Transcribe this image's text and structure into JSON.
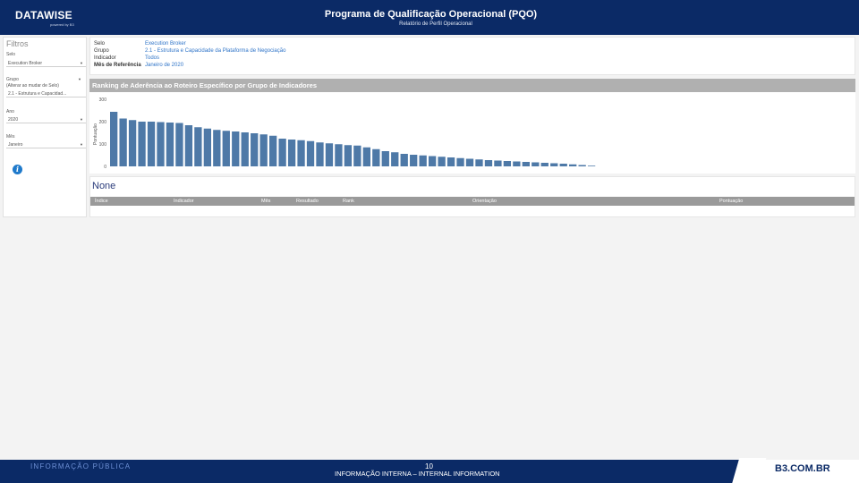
{
  "header": {
    "logo": "DATAWISE",
    "logo_sub": "powered by B3",
    "title": "Programa de Qualificação Operacional (PQO)",
    "subtitle": "Relatório de Perfil Operacional"
  },
  "filters": {
    "title": "Filtros",
    "selo_label": "Selo",
    "selo_value": "Execution Broker",
    "grupo_label_1": "Grupo",
    "grupo_label_2": "(Alterar ao mudar de Selo)",
    "grupo_value": "2.1 - Estrutura e Capacidad...",
    "ano_label": "Ano",
    "ano_value": "2020",
    "mes_label": "Mês",
    "mes_value": "Janeiro"
  },
  "summary": {
    "rows": [
      {
        "key": "Selo",
        "value": "Execution Broker"
      },
      {
        "key": "Grupo",
        "value": "2.1 - Estrutura e Capacidade da Plataforma de Negociação"
      },
      {
        "key": "Indicador",
        "value": "Todos"
      },
      {
        "key": "Mês de Referência",
        "value": "Janeiro de 2020"
      }
    ]
  },
  "chart_data": {
    "type": "bar",
    "title": "Ranking de Aderência ao Roteiro Específico por Grupo de Indicadores",
    "ylabel": "Pontuação",
    "ylim": [
      0,
      300
    ],
    "y_ticks": [
      "300",
      "200",
      "100",
      "0"
    ],
    "values": [
      244,
      214,
      207,
      200,
      200,
      198,
      196,
      194,
      184,
      175,
      169,
      163,
      159,
      156,
      152,
      148,
      143,
      137,
      124,
      120,
      117,
      113,
      107,
      103,
      99,
      95,
      93,
      85,
      77,
      68,
      63,
      56,
      52,
      49,
      46,
      43,
      40,
      37,
      34,
      31,
      28,
      26,
      24,
      22,
      20,
      18,
      16,
      14,
      12,
      9,
      6,
      3
    ],
    "bar_color": "#4e79a7"
  },
  "table": {
    "title": "None",
    "columns": [
      "Índice",
      "Indicador",
      "Mês",
      "Resultado",
      "Rank",
      "Orientação",
      "Pontuação"
    ]
  },
  "footer": {
    "left": "INFORMAÇÃO PÚBLICA",
    "page": "10",
    "center": "INFORMAÇÃO INTERNA – INTERNAL INFORMATION",
    "brand": "B3.COM.BR"
  }
}
